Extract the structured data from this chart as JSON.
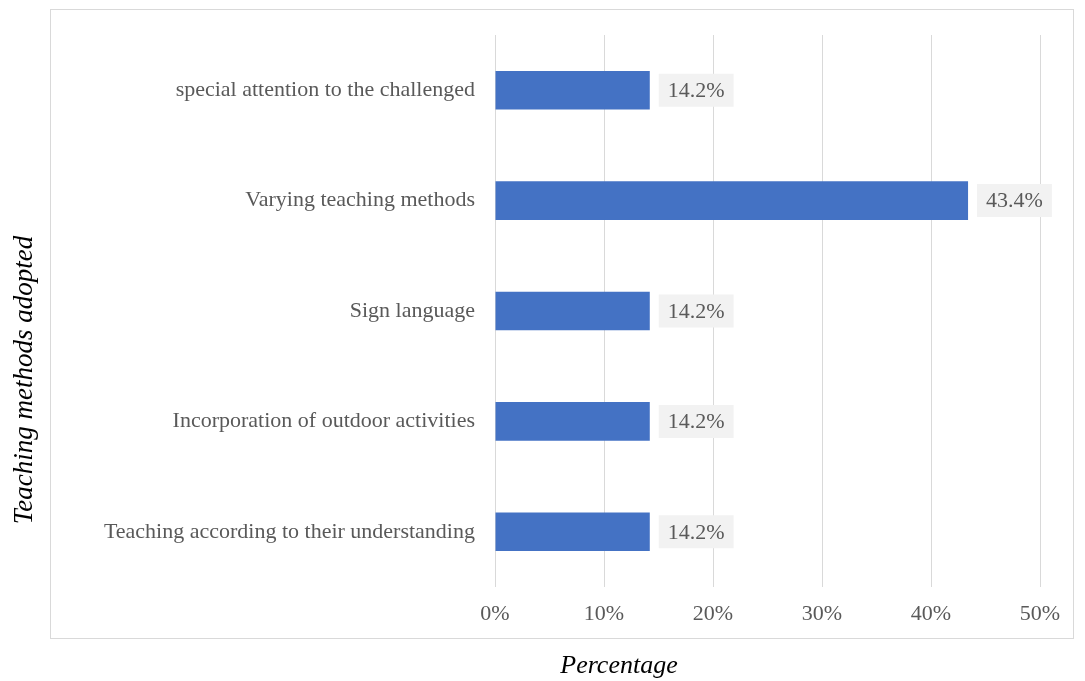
{
  "chart_data": {
    "type": "bar",
    "orientation": "horizontal",
    "xlabel": "Percentage",
    "ylabel": "Teaching methods adopted",
    "categories": [
      "special attention to the challenged",
      "Varying teaching methods",
      "Sign language",
      "Incorporation of outdoor activities",
      "Teaching according to their understanding"
    ],
    "values": [
      14.2,
      43.4,
      14.2,
      14.2,
      14.2
    ],
    "color": "#4472c4",
    "value_labels": [
      "14.2%",
      "43.4%",
      "14.2%",
      "14.2%",
      "14.2%"
    ],
    "xlim": [
      0,
      50
    ],
    "xticks": [
      {
        "value": 0,
        "label": "0%"
      },
      {
        "value": 10,
        "label": "10%"
      },
      {
        "value": 20,
        "label": "20%"
      },
      {
        "value": 30,
        "label": "30%"
      },
      {
        "value": 40,
        "label": "40%"
      },
      {
        "value": 50,
        "label": "50%"
      }
    ],
    "grid": "x"
  }
}
